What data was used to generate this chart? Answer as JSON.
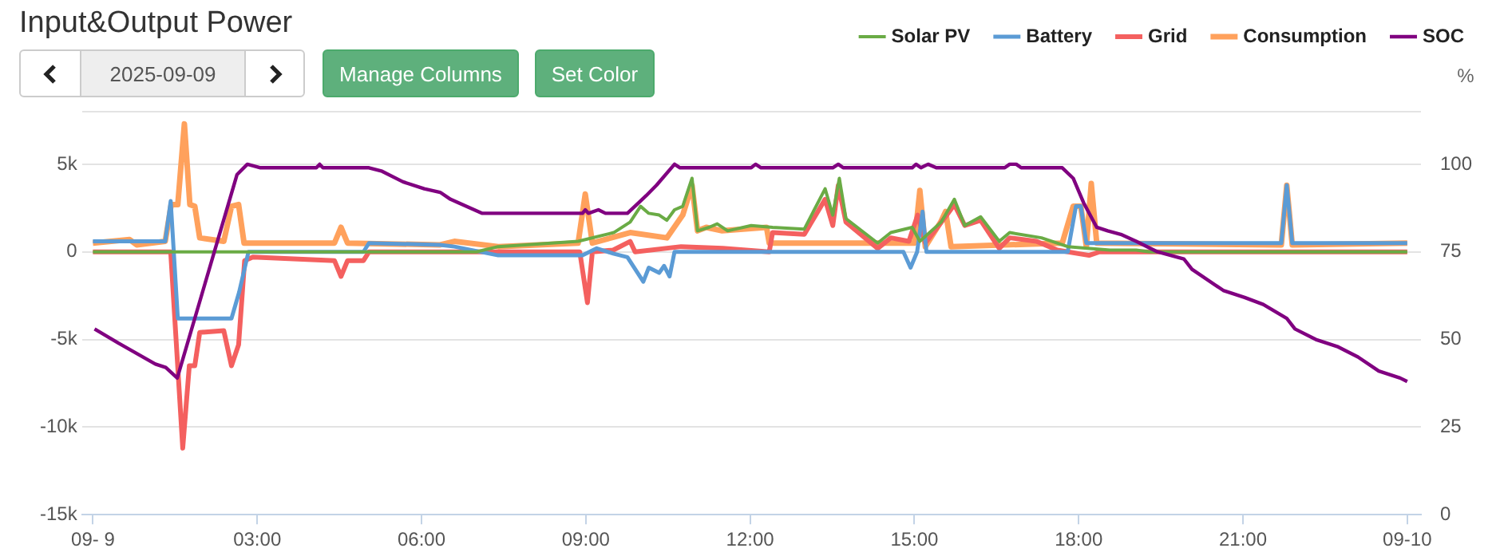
{
  "chart_data": {
    "type": "line",
    "title": "Input&Output Power",
    "y2label": "%",
    "annotations": [
      "2025-09-09",
      "Manage Columns",
      "Set Color"
    ],
    "xlim": [
      -0.2,
      24.25
    ],
    "xticks": [
      {
        "value": 0,
        "label": "09- 9"
      },
      {
        "value": 3,
        "label": "03:00"
      },
      {
        "value": 6,
        "label": "06:00"
      },
      {
        "value": 9,
        "label": "09:00"
      },
      {
        "value": 12,
        "label": "12:00"
      },
      {
        "value": 15,
        "label": "15:00"
      },
      {
        "value": 18,
        "label": "18:00"
      },
      {
        "value": 21,
        "label": "21:00"
      },
      {
        "value": 24,
        "label": "09-10"
      }
    ],
    "ylim": [
      -15000,
      8000
    ],
    "yticks": [
      {
        "value": -15000,
        "label": "-15k"
      },
      {
        "value": -10000,
        "label": "-10k"
      },
      {
        "value": -5000,
        "label": "-5k"
      },
      0,
      {
        "value": 5000,
        "label": "5k"
      },
      {
        "value": 8000,
        "label": null
      }
    ],
    "y2lim": [
      0,
      115
    ],
    "y2ticks": [
      0,
      25,
      50,
      75,
      100
    ],
    "grid": "y",
    "legend": "top right",
    "marker": "none",
    "line_style": "solid",
    "series": [
      {
        "name": "Solar PV",
        "color": "#6aab45",
        "x": [
          0,
          7.0,
          7.4,
          8.86,
          9.51,
          9.81,
          10.0,
          10.15,
          10.34,
          10.48,
          10.62,
          10.77,
          10.94,
          11.04,
          11.25,
          11.4,
          11.59,
          12.02,
          12.41,
          12.99,
          13.37,
          13.51,
          13.63,
          13.75,
          14.33,
          14.57,
          14.96,
          15.1,
          15.49,
          15.73,
          15.92,
          16.21,
          16.55,
          16.74,
          17.32,
          17.8,
          18.57,
          19.05,
          19.3,
          24
        ],
        "values": [
          0,
          0,
          300,
          600,
          1100,
          1700,
          2600,
          2200,
          2100,
          1800,
          2400,
          2600,
          4200,
          1200,
          1400,
          1600,
          1200,
          1500,
          1400,
          1300,
          3600,
          2100,
          4200,
          1900,
          500,
          1100,
          1400,
          600,
          1700,
          3000,
          1500,
          2000,
          600,
          1100,
          800,
          300,
          100,
          100,
          0,
          0
        ]
      },
      {
        "name": "Battery",
        "color": "#5b9bd5",
        "x": [
          0,
          1.32,
          1.42,
          1.55,
          2.53,
          2.67,
          2.84,
          4.94,
          5.04,
          6.34,
          6.6,
          7.4,
          8.94,
          9.2,
          9.5,
          9.76,
          10.05,
          10.15,
          10.34,
          10.43,
          10.53,
          10.62,
          14.8,
          14.93,
          15.05,
          15.15,
          15.22,
          17.8,
          17.95,
          18.04,
          18.14,
          21.7,
          21.8,
          21.9,
          24
        ],
        "values": [
          600,
          600,
          2900,
          -3800,
          -3800,
          -2300,
          0,
          0,
          500,
          400,
          300,
          -200,
          -200,
          200,
          -100,
          -300,
          -1700,
          -900,
          -1200,
          -800,
          -1400,
          0,
          0,
          -900,
          0,
          2300,
          0,
          0,
          2600,
          2600,
          500,
          500,
          3800,
          500,
          500
        ]
      },
      {
        "name": "Grid",
        "color": "#f4605f",
        "x": [
          0,
          1.42,
          1.64,
          1.76,
          1.86,
          1.95,
          2.39,
          2.53,
          2.66,
          2.77,
          2.92,
          4.41,
          4.53,
          4.65,
          4.94,
          5.04,
          8.89,
          9.03,
          9.12,
          9.5,
          9.81,
          9.9,
          10.74,
          11.5,
          12.35,
          12.41,
          12.99,
          13.37,
          13.51,
          13.61,
          13.75,
          14.33,
          14.57,
          14.9,
          15.06,
          15.2,
          15.59,
          15.73,
          15.92,
          16.21,
          16.55,
          16.74,
          17.23,
          17.61,
          18.19,
          18.38,
          24
        ],
        "values": [
          0,
          0,
          -11200,
          -6500,
          -6500,
          -4600,
          -4500,
          -6500,
          -5300,
          -500,
          -300,
          -500,
          -1400,
          -500,
          -500,
          0,
          0,
          -2900,
          0,
          100,
          600,
          0,
          300,
          200,
          0,
          1100,
          1000,
          3000,
          1500,
          3800,
          1700,
          200,
          800,
          600,
          2100,
          500,
          2100,
          2700,
          1500,
          1800,
          200,
          800,
          600,
          100,
          -200,
          0,
          0
        ]
      },
      {
        "name": "Consumption",
        "color": "#ffa15c",
        "x": [
          0,
          0.67,
          0.8,
          1.32,
          1.43,
          1.55,
          1.67,
          1.77,
          1.86,
          1.95,
          2.39,
          2.53,
          2.66,
          2.76,
          4.41,
          4.53,
          4.65,
          6.34,
          6.6,
          7.4,
          8.86,
          8.99,
          9.12,
          9.81,
          10.48,
          10.77,
          10.94,
          11.04,
          11.2,
          11.49,
          12.3,
          12.35,
          15.0,
          15.1,
          15.2,
          15.48,
          15.57,
          15.67,
          17.7,
          17.9,
          18.04,
          18.14,
          18.23,
          18.33,
          21.7,
          21.8,
          21.9,
          24
        ],
        "values": [
          500,
          700,
          400,
          600,
          2700,
          2700,
          7300,
          2700,
          2600,
          800,
          600,
          2600,
          2700,
          500,
          500,
          1400,
          500,
          400,
          600,
          300,
          500,
          3300,
          500,
          1100,
          800,
          2100,
          3800,
          1200,
          1400,
          1200,
          1400,
          500,
          500,
          3500,
          300,
          1700,
          2300,
          300,
          500,
          2600,
          2600,
          300,
          3900,
          500,
          400,
          3800,
          400,
          500
        ]
      },
      {
        "name": "SOC",
        "color": "#800080",
        "axis": "y2",
        "x": [
          0.03,
          0.46,
          1.14,
          1.33,
          1.54,
          2.63,
          2.82,
          3.06,
          4.08,
          4.14,
          4.2,
          5.04,
          5.28,
          5.66,
          6.05,
          6.34,
          6.53,
          7.11,
          8.94,
          8.99,
          9.05,
          9.23,
          9.36,
          9.76,
          10.1,
          10.29,
          10.62,
          10.72,
          12.02,
          12.1,
          12.2,
          13.51,
          13.61,
          13.7,
          14.96,
          15.03,
          15.12,
          15.25,
          15.4,
          16.65,
          16.74,
          16.86,
          16.95,
          17.7,
          17.9,
          18.09,
          18.33,
          18.53,
          18.77,
          19.05,
          19.44,
          19.92,
          20.07,
          20.64,
          21.03,
          21.37,
          21.8,
          21.95,
          22.33,
          22.72,
          23.1,
          23.48,
          23.87,
          24
        ],
        "values": [
          53,
          49,
          43,
          42,
          39,
          97,
          100,
          99,
          99,
          100,
          99,
          99,
          98,
          95,
          93,
          92,
          90,
          86,
          86,
          87,
          86,
          87,
          86,
          86,
          91,
          94,
          100,
          99,
          99,
          100,
          99,
          99,
          100,
          99,
          99,
          100,
          99,
          100,
          99,
          99,
          100,
          100,
          99,
          99,
          96,
          89,
          82,
          81,
          80,
          78,
          75,
          73,
          70,
          64,
          62,
          60,
          56,
          53,
          50,
          48,
          45,
          41,
          39,
          38
        ]
      }
    ]
  }
}
